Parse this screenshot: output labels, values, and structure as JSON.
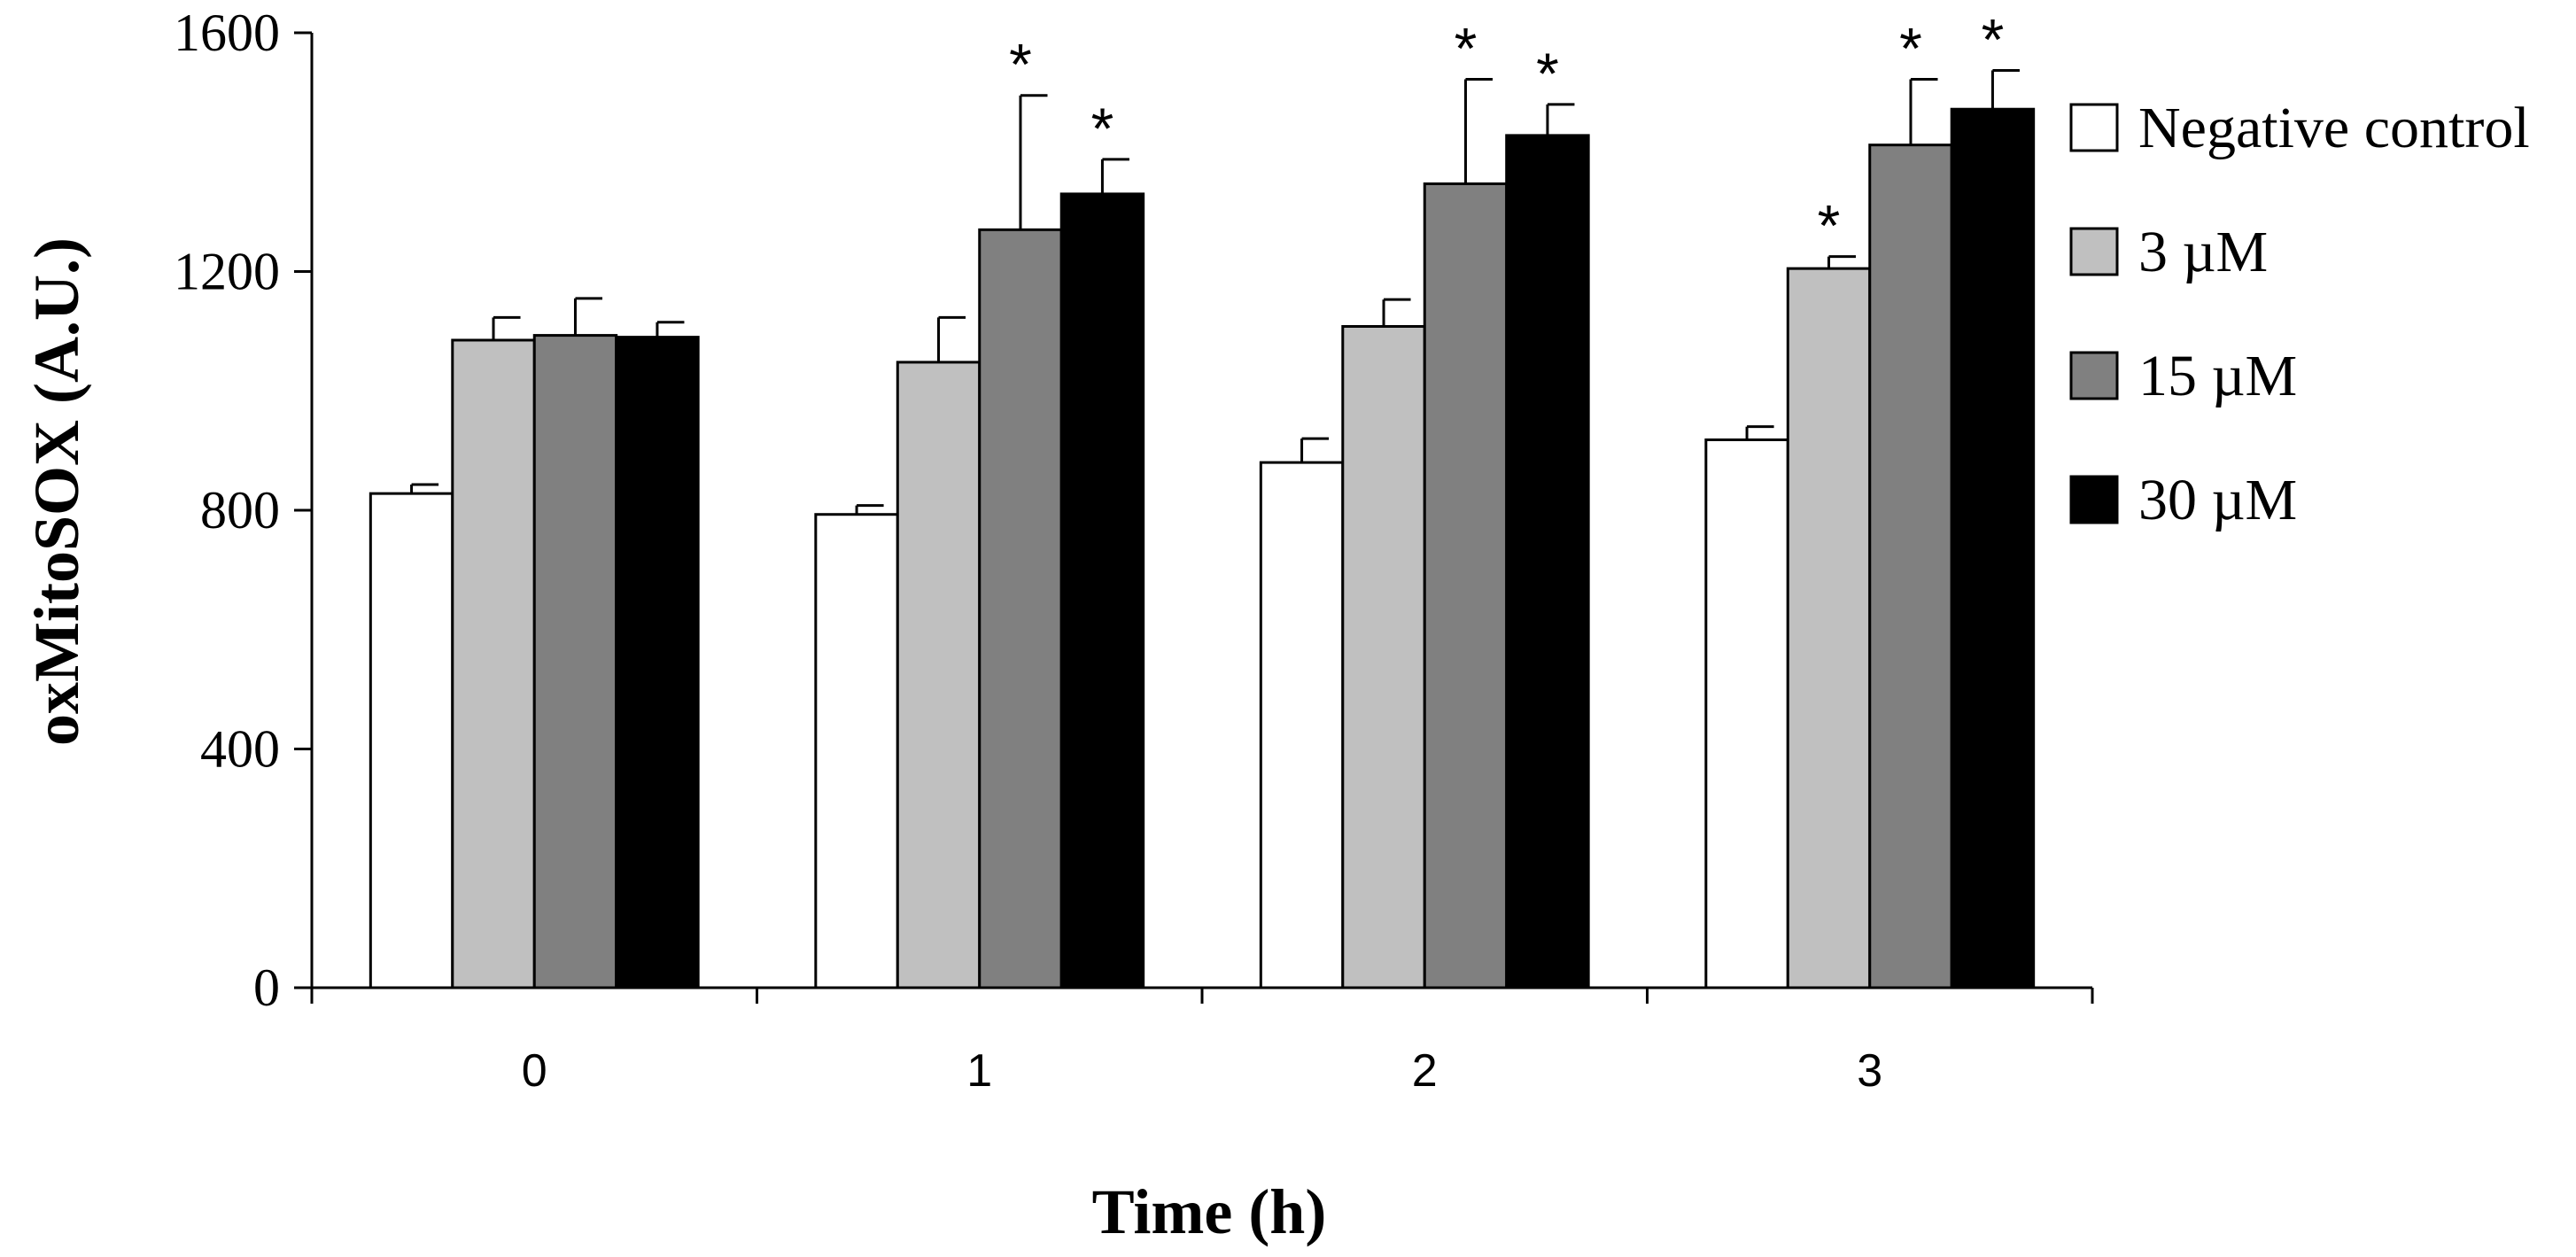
{
  "chart_data": {
    "type": "bar",
    "xlabel": "Time (h)",
    "ylabel": "oxMitoSOX (A.U.)",
    "ylim": [
      0,
      1600
    ],
    "yticks": [
      0,
      400,
      800,
      1200,
      1600
    ],
    "grid": false,
    "legend_position": "right",
    "categories": [
      "0",
      "1",
      "2",
      "3"
    ],
    "series": [
      {
        "name": "Negative control",
        "color": "#ffffff",
        "values": [
          828,
          793,
          880,
          918
        ],
        "errors": [
          15,
          15,
          40,
          22
        ],
        "significant": [
          false,
          false,
          false,
          false
        ]
      },
      {
        "name": "3 µM",
        "color": "#c0c0c0",
        "values": [
          1085,
          1048,
          1108,
          1205
        ],
        "errors": [
          38,
          75,
          45,
          20
        ],
        "significant": [
          false,
          false,
          false,
          true
        ]
      },
      {
        "name": "15 µM",
        "color": "#808080",
        "values": [
          1093,
          1270,
          1347,
          1412
        ],
        "errors": [
          62,
          225,
          175,
          110
        ],
        "significant": [
          false,
          true,
          true,
          true
        ]
      },
      {
        "name": "30 µM",
        "color": "#000000",
        "values": [
          1090,
          1330,
          1428,
          1472
        ],
        "errors": [
          25,
          58,
          52,
          65
        ],
        "significant": [
          false,
          true,
          true,
          true
        ]
      }
    ],
    "significance_marker": "*"
  }
}
